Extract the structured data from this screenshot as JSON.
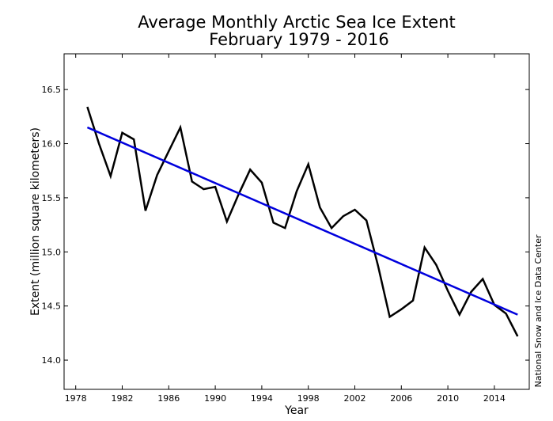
{
  "chart_data": {
    "type": "line",
    "title": "Average Monthly Arctic Sea Ice Extent",
    "subtitle": "February 1979 - 2016",
    "xlabel": "Year",
    "ylabel": "Extent (million square kilometers)",
    "credit": "National Snow and Ice Data Center",
    "xlim": [
      1977,
      2017
    ],
    "ylim": [
      13.73,
      16.83
    ],
    "xticks": [
      1978,
      1982,
      1986,
      1990,
      1994,
      1998,
      2002,
      2006,
      2010,
      2014
    ],
    "yticks": [
      14.0,
      14.5,
      15.0,
      15.5,
      16.0,
      16.5
    ],
    "ytick_labels": [
      "14.0",
      "14.5",
      "15.0",
      "15.5",
      "16.0",
      "16.5"
    ],
    "grid": false,
    "series": [
      {
        "color": "#000000",
        "x": [
          1979,
          1980,
          1981,
          1982,
          1983,
          1984,
          1985,
          1986,
          1987,
          1988,
          1989,
          1990,
          1991,
          1992,
          1993,
          1994,
          1995,
          1996,
          1997,
          1998,
          1999,
          2000,
          2001,
          2002,
          2003,
          2004,
          2005,
          2006,
          2007,
          2008,
          2009,
          2010,
          2011,
          2012,
          2013,
          2014,
          2015,
          2016
        ],
        "y": [
          16.34,
          16.0,
          15.7,
          16.1,
          16.04,
          15.38,
          15.71,
          15.93,
          16.15,
          15.65,
          15.58,
          15.6,
          15.28,
          15.53,
          15.76,
          15.64,
          15.27,
          15.22,
          15.56,
          15.81,
          15.41,
          15.22,
          15.33,
          15.39,
          15.29,
          14.87,
          14.4,
          14.47,
          14.55,
          15.04,
          14.88,
          14.64,
          14.42,
          14.63,
          14.75,
          14.51,
          14.43,
          14.22
        ]
      },
      {
        "color": "#0000dd",
        "x": [
          1979,
          2016
        ],
        "y": [
          16.15,
          14.42
        ]
      }
    ]
  }
}
